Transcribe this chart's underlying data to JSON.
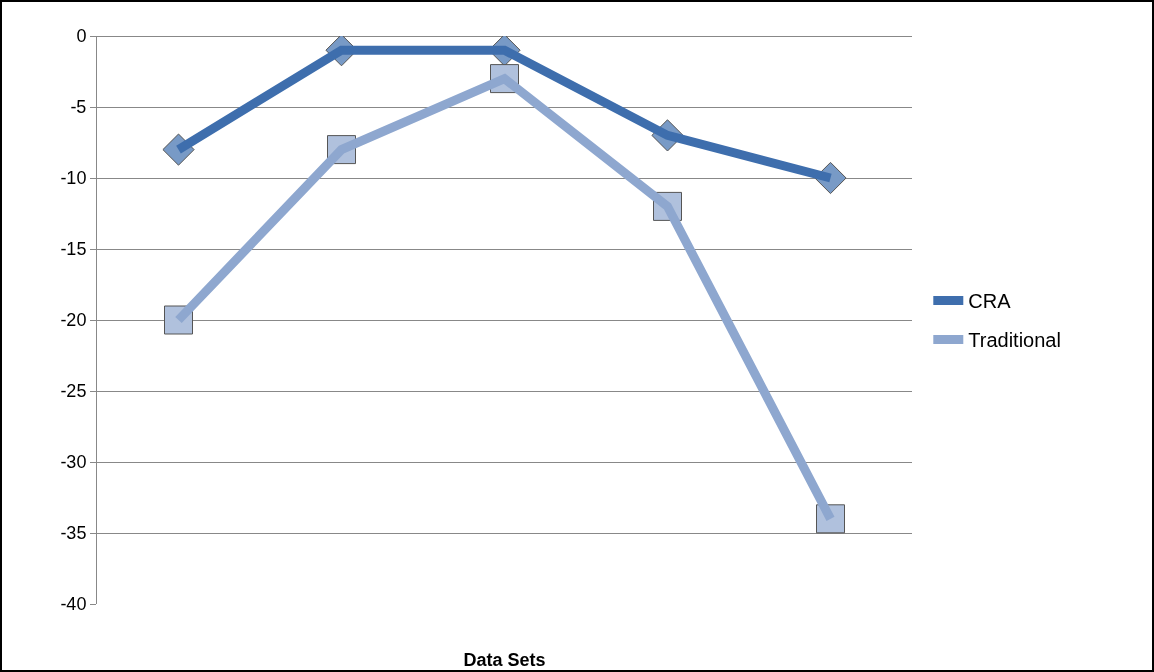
{
  "chart_data": {
    "type": "line",
    "xlabel": "Data Sets",
    "categories": [
      null,
      null,
      null,
      null,
      null
    ],
    "series": [
      {
        "name": "CRA",
        "color": "#3e6ead",
        "marker": "diamond",
        "values": [
          -8,
          -1,
          -1,
          -7,
          -10
        ]
      },
      {
        "name": "Traditional",
        "color": "#8ea7cf",
        "marker": "square",
        "values": [
          -20,
          -8,
          -3,
          -12,
          -34
        ]
      }
    ],
    "ylim": [
      -40,
      0
    ],
    "yticks": [
      -40,
      -35,
      -30,
      -25,
      -20,
      -15,
      -10,
      -5,
      0
    ],
    "grid": "y",
    "legend": "right"
  }
}
